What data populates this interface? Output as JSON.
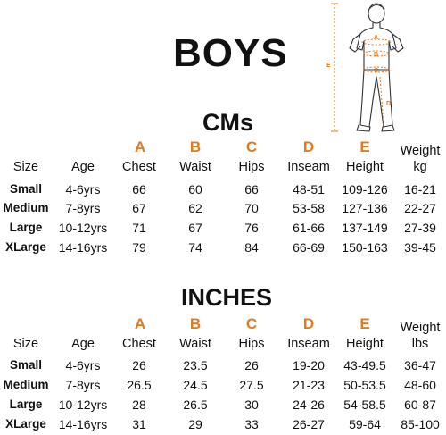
{
  "title": "BOYS",
  "accent_color": "#e07b1f",
  "figure": {
    "labels": [
      "A",
      "B",
      "C",
      "D",
      "E"
    ]
  },
  "cm": {
    "heading": "CMs",
    "letters": [
      "A",
      "B",
      "C",
      "D",
      "E"
    ],
    "headers": [
      "Size",
      "Age",
      "Chest",
      "Waist",
      "Hips",
      "Inseam",
      "Height",
      "Weight",
      "kg"
    ],
    "rows": [
      [
        "Small",
        "4-6yrs",
        "66",
        "60",
        "66",
        "48-51",
        "109-126",
        "16-21"
      ],
      [
        "Medium",
        "7-8yrs",
        "67",
        "62",
        "70",
        "53-58",
        "127-136",
        "22-27"
      ],
      [
        "Large",
        "10-12yrs",
        "71",
        "67",
        "76",
        "61-66",
        "137-149",
        "27-39"
      ],
      [
        "XLarge",
        "14-16yrs",
        "79",
        "74",
        "84",
        "66-69",
        "150-163",
        "39-45"
      ]
    ]
  },
  "inches": {
    "heading": "INCHES",
    "letters": [
      "A",
      "B",
      "C",
      "D",
      "E"
    ],
    "headers": [
      "Size",
      "Age",
      "Chest",
      "Waist",
      "Hips",
      "Inseam",
      "Height",
      "Weight",
      "lbs"
    ],
    "rows": [
      [
        "Small",
        "4-6yrs",
        "26",
        "23.5",
        "26",
        "19-20",
        "43-49.5",
        "36-47"
      ],
      [
        "Medium",
        "7-8yrs",
        "26.5",
        "24.5",
        "27.5",
        "21-23",
        "50-53.5",
        "48-60"
      ],
      [
        "Large",
        "10-12yrs",
        "28",
        "26.5",
        "30",
        "24-26",
        "54-58.5",
        "60-87"
      ],
      [
        "XLarge",
        "14-16yrs",
        "31",
        "29",
        "33",
        "26-27",
        "59-64",
        "85-100"
      ]
    ]
  }
}
